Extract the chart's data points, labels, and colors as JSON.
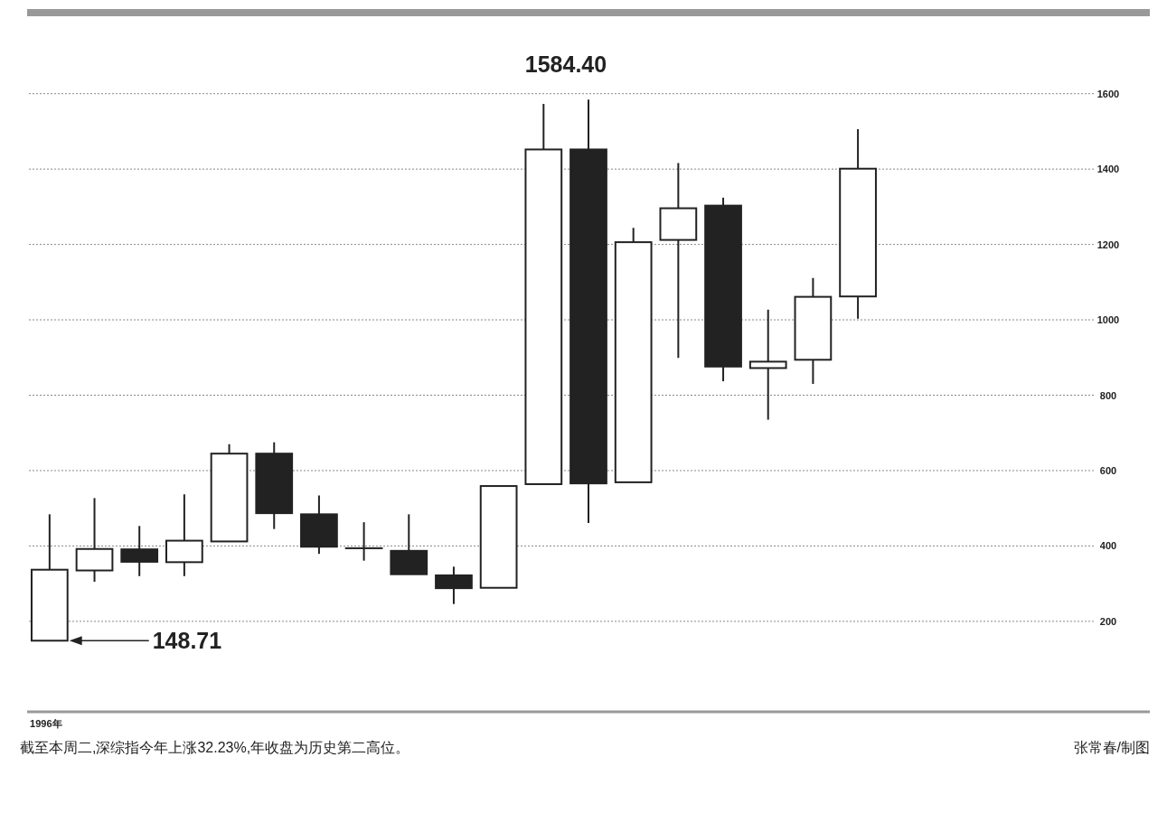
{
  "chart_data": {
    "type": "candlestick",
    "categories": [
      "1996年",
      null,
      null,
      null,
      null,
      null,
      null,
      null,
      null,
      null,
      null,
      null,
      null,
      null,
      null,
      null,
      null,
      null,
      null,
      null,
      null,
      null,
      null,
      null,
      null
    ],
    "ohlc": [
      [
        148.71,
        484,
        148.71,
        337
      ],
      [
        335,
        527,
        305,
        392
      ],
      [
        391,
        453,
        320,
        358
      ],
      [
        357,
        537,
        320,
        414
      ],
      [
        412,
        670,
        412,
        645
      ],
      [
        645,
        675,
        445,
        487
      ],
      [
        484,
        534,
        379,
        398
      ],
      [
        394,
        463,
        361,
        394
      ],
      [
        387,
        484,
        325,
        325
      ],
      [
        322,
        345,
        246,
        288
      ],
      [
        289,
        559,
        289,
        559
      ],
      [
        564,
        1573,
        564,
        1452
      ],
      [
        1452,
        1584.4,
        461,
        566
      ],
      [
        569,
        1244,
        569,
        1206
      ],
      [
        1212,
        1416,
        899,
        1296
      ],
      [
        1303,
        1324,
        837,
        876
      ],
      [
        872,
        1027,
        735,
        889
      ],
      [
        894,
        1111,
        830,
        1061
      ],
      [
        1062,
        1506,
        1003,
        1401
      ],
      null,
      null,
      null,
      null,
      null,
      null
    ],
    "colors": [
      "#ffffff",
      "#ffffff",
      "#222222",
      "#ffffff",
      "#ffffff",
      "#222222",
      "#222222",
      "#ffffff",
      "#222222",
      "#222222",
      "#ffffff",
      "#ffffff",
      "#222222",
      "#ffffff",
      "#ffffff",
      "#222222",
      "#ffffff",
      "#ffffff",
      "#ffffff",
      null,
      null,
      null,
      null,
      null,
      null
    ],
    "ylim": [
      -40,
      1815
    ],
    "yticks": [
      200,
      400,
      600,
      800,
      1000,
      1200,
      1400,
      1600
    ],
    "grid": "y",
    "annotations": [
      "148.71",
      "1584.40",
      "截至本周二,深综指今年上涨32.23%,年收盘为历史第二高位。",
      "张常春/制图"
    ]
  }
}
